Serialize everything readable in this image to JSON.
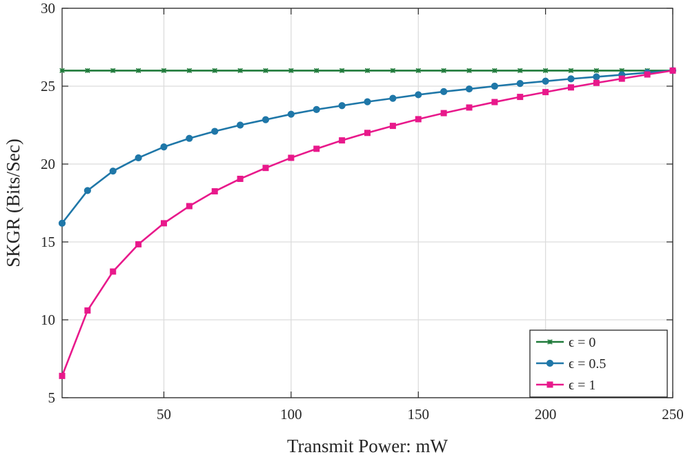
{
  "chart_data": {
    "type": "line",
    "title": "",
    "xlabel": "Transmit Power: mW",
    "ylabel": "SKGR (Bits/Sec)",
    "xlim": [
      10,
      250
    ],
    "ylim": [
      5,
      30
    ],
    "xticks": [
      50,
      100,
      150,
      200,
      250
    ],
    "yticks": [
      5,
      10,
      15,
      20,
      25,
      30
    ],
    "grid": true,
    "legend_position": "bottom-right",
    "x": [
      10,
      20,
      30,
      40,
      50,
      60,
      70,
      80,
      90,
      100,
      110,
      120,
      130,
      140,
      150,
      160,
      170,
      180,
      190,
      200,
      210,
      220,
      230,
      240,
      250
    ],
    "series": [
      {
        "name": "ϵ = 0",
        "color": "#1f7a3a",
        "marker": "star",
        "values": [
          26,
          26,
          26,
          26,
          26,
          26,
          26,
          26,
          26,
          26,
          26,
          26,
          26,
          26,
          26,
          26,
          26,
          26,
          26,
          26,
          26,
          26,
          26,
          26,
          26
        ]
      },
      {
        "name": "ϵ = 0.5",
        "color": "#1f77a8",
        "marker": "circle",
        "values": [
          16.2,
          18.3,
          19.55,
          20.4,
          21.1,
          21.65,
          22.1,
          22.5,
          22.85,
          23.2,
          23.5,
          23.75,
          24.0,
          24.22,
          24.45,
          24.65,
          24.82,
          25.0,
          25.17,
          25.32,
          25.47,
          25.6,
          25.73,
          25.87,
          26.0
        ]
      },
      {
        "name": "ϵ = 1",
        "color": "#e8198b",
        "marker": "square",
        "values": [
          6.4,
          10.6,
          13.1,
          14.85,
          16.2,
          17.3,
          18.25,
          19.05,
          19.75,
          20.4,
          20.98,
          21.52,
          22.0,
          22.45,
          22.88,
          23.27,
          23.63,
          23.98,
          24.31,
          24.62,
          24.92,
          25.21,
          25.48,
          25.75,
          26.0
        ]
      }
    ]
  }
}
